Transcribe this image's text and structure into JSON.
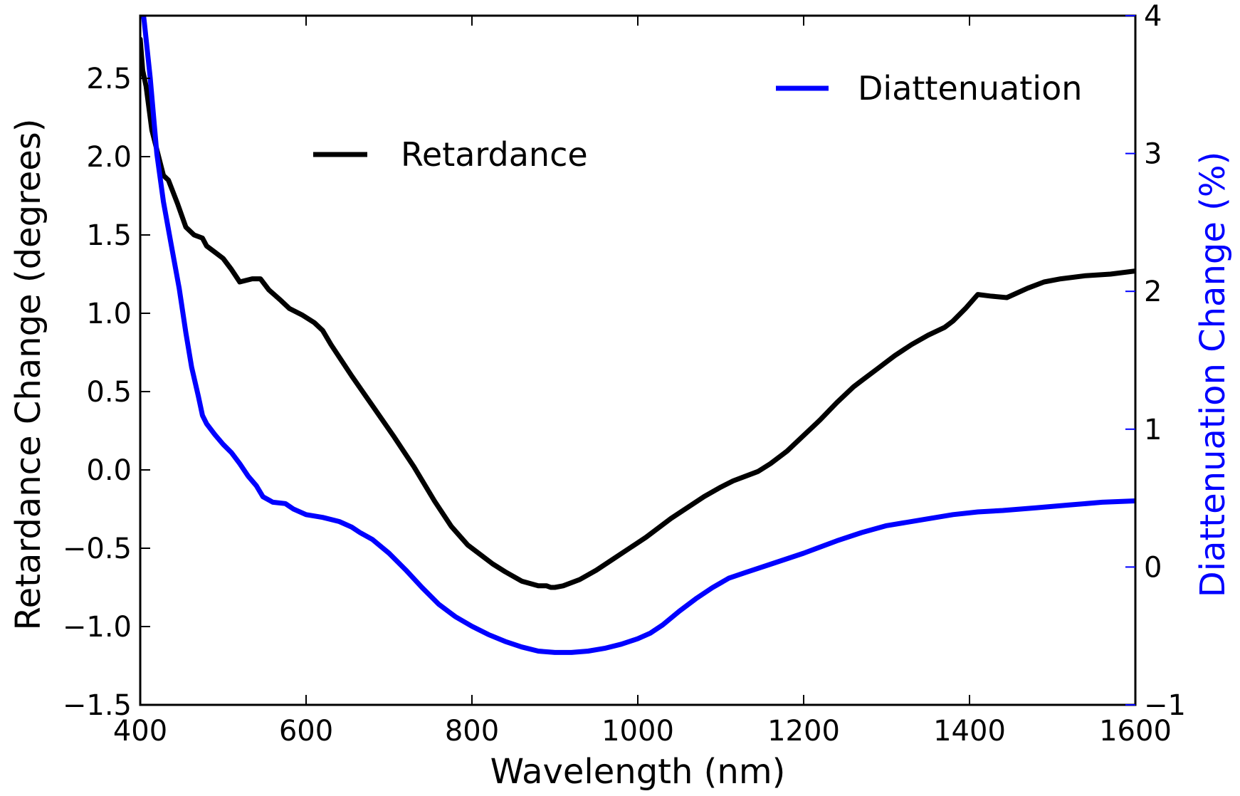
{
  "chart_data": {
    "type": "line",
    "title": "",
    "xlabel": "Wavelength (nm)",
    "ylabel_left": "Retardance Change (degrees)",
    "ylabel_right": "Diattenuation Change (%)",
    "xlim": [
      400,
      1600
    ],
    "ylim_left": [
      -1.5,
      2.9
    ],
    "ylim_right": [
      -1,
      4
    ],
    "x_ticks": [
      "400",
      "600",
      "800",
      "1000",
      "1200",
      "1400",
      "1600"
    ],
    "y_left_ticks": [
      "2.5",
      "2.0",
      "1.5",
      "1.0",
      "0.5",
      "0.0",
      "−0.5",
      "−1.0",
      "−1.5"
    ],
    "y_right_ticks": [
      "4",
      "3",
      "2",
      "1",
      "0",
      "−1"
    ],
    "grid": false,
    "colors": {
      "retardance": "#000000",
      "diattenuation": "#0000ff",
      "right_axis": "#0000ff"
    },
    "series": [
      {
        "name": "Retardance",
        "axis": "left",
        "color": "#000000",
        "x": [
          400,
          403,
          407,
          414,
          428,
          434,
          445,
          455,
          465,
          475,
          480,
          490,
          500,
          510,
          520,
          535,
          545,
          555,
          570,
          580,
          595,
          610,
          620,
          630,
          655,
          680,
          705,
          730,
          755,
          775,
          795,
          810,
          825,
          840,
          860,
          880,
          890,
          895,
          900,
          910,
          930,
          950,
          970,
          990,
          1010,
          1040,
          1060,
          1080,
          1100,
          1115,
          1130,
          1145,
          1160,
          1180,
          1200,
          1220,
          1240,
          1260,
          1270,
          1290,
          1310,
          1330,
          1350,
          1370,
          1380,
          1395,
          1410,
          1425,
          1445,
          1470,
          1490,
          1510,
          1540,
          1570,
          1600
        ],
        "values": [
          2.75,
          2.55,
          2.45,
          2.17,
          1.88,
          1.85,
          1.7,
          1.55,
          1.5,
          1.48,
          1.43,
          1.39,
          1.35,
          1.28,
          1.2,
          1.22,
          1.22,
          1.15,
          1.08,
          1.03,
          0.99,
          0.94,
          0.89,
          0.8,
          0.6,
          0.41,
          0.22,
          0.02,
          -0.2,
          -0.36,
          -0.48,
          -0.54,
          -0.6,
          -0.65,
          -0.71,
          -0.74,
          -0.74,
          -0.75,
          -0.75,
          -0.74,
          -0.7,
          -0.64,
          -0.57,
          -0.5,
          -0.43,
          -0.31,
          -0.24,
          -0.17,
          -0.11,
          -0.07,
          -0.04,
          -0.01,
          0.04,
          0.12,
          0.22,
          0.32,
          0.43,
          0.53,
          0.57,
          0.65,
          0.73,
          0.8,
          0.86,
          0.91,
          0.95,
          1.03,
          1.12,
          1.11,
          1.1,
          1.16,
          1.2,
          1.22,
          1.24,
          1.25,
          1.27
        ]
      },
      {
        "name": "Diattenuation",
        "axis": "right",
        "color": "#0000ff",
        "x": [
          400,
          405,
          412,
          420,
          428,
          437,
          447,
          455,
          462,
          470,
          475,
          480,
          490,
          500,
          510,
          520,
          530,
          540,
          548,
          560,
          575,
          585,
          600,
          620,
          640,
          655,
          665,
          680,
          700,
          720,
          740,
          760,
          780,
          800,
          820,
          840,
          860,
          880,
          900,
          920,
          940,
          960,
          980,
          1000,
          1015,
          1030,
          1050,
          1070,
          1090,
          1110,
          1130,
          1160,
          1200,
          1240,
          1270,
          1300,
          1340,
          1380,
          1410,
          1440,
          1480,
          1520,
          1560,
          1600
        ],
        "values": [
          4.2,
          3.95,
          3.55,
          3.0,
          2.65,
          2.35,
          2.02,
          1.7,
          1.45,
          1.24,
          1.1,
          1.04,
          0.96,
          0.89,
          0.83,
          0.75,
          0.66,
          0.59,
          0.51,
          0.47,
          0.46,
          0.42,
          0.38,
          0.36,
          0.33,
          0.29,
          0.25,
          0.2,
          0.1,
          -0.02,
          -0.15,
          -0.27,
          -0.36,
          -0.43,
          -0.49,
          -0.54,
          -0.58,
          -0.61,
          -0.62,
          -0.62,
          -0.61,
          -0.59,
          -0.56,
          -0.52,
          -0.48,
          -0.42,
          -0.32,
          -0.23,
          -0.15,
          -0.08,
          -0.04,
          0.02,
          0.1,
          0.19,
          0.25,
          0.3,
          0.34,
          0.38,
          0.4,
          0.41,
          0.43,
          0.45,
          0.47,
          0.48
        ]
      }
    ],
    "legend": [
      {
        "label": "Retardance",
        "color": "#000000",
        "position": "upper-left-center"
      },
      {
        "label": "Diattenuation",
        "color": "#0000ff",
        "position": "top-right"
      }
    ]
  }
}
